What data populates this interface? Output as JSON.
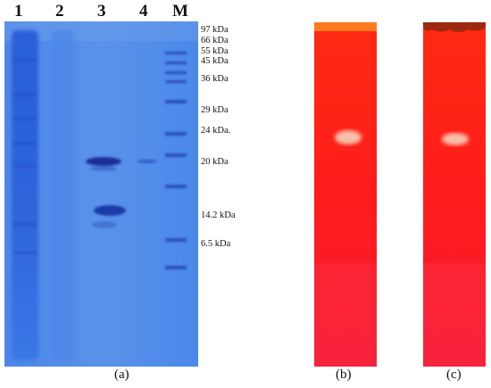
{
  "lanes": [
    "1",
    "2",
    "3",
    "4",
    "M"
  ],
  "markers": [
    "97 kDa",
    "66 kDa",
    "55 kDa",
    "45 kDa",
    "36 kDa",
    "29 kDa",
    "24 kDa.",
    "20 kDa",
    "14.2 kDa",
    "6.5 kDa"
  ],
  "captions": [
    "(a)",
    "(b)",
    "(c)"
  ],
  "colors": {
    "gel_blue": "#3f7fe6",
    "zymogram_red": "#ff1c1c",
    "band_dark": "#1a2f9a",
    "clear_zone": "#f7b7a0"
  }
}
